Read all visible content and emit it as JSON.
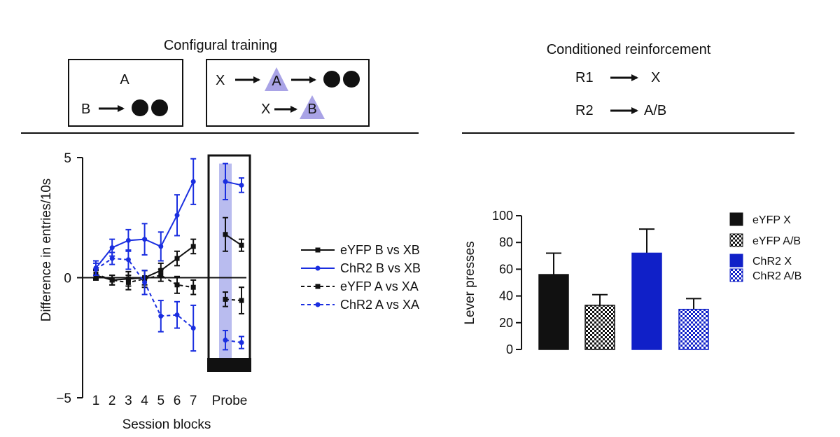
{
  "schematic": {
    "left_title": "Configural training",
    "box1": {
      "top": "A",
      "bottom": "B"
    },
    "box2": {
      "row1_x": "X",
      "row1_cue": "A",
      "row2_x": "X",
      "row2_cue": "B"
    },
    "right_title": "Conditioned reinforcement",
    "responses": [
      {
        "response": "R1",
        "outcome": "X"
      },
      {
        "response": "R2",
        "outcome": "A/B"
      }
    ]
  },
  "colors": {
    "black": "#111111",
    "blue": "#1a2ee0",
    "bar_blue": "#1020c8",
    "probe_highlight": "#b9bcef",
    "cue_triangle": "#a9a3e6"
  },
  "chart_data": [
    {
      "type": "line",
      "title": "",
      "xlabel": "Session blocks",
      "ylabel": "Difference in entries/10s",
      "ylim": [
        -5,
        5
      ],
      "y_ticks": [
        "5",
        "0",
        "−5"
      ],
      "categories": [
        "1",
        "2",
        "3",
        "4",
        "5",
        "6",
        "7"
      ],
      "probe_label": "Probe",
      "series": [
        {
          "name": "eYFP B vs XB",
          "color": "black",
          "dash": false,
          "values": [
            0.1,
            -0.1,
            -0.05,
            0.0,
            0.3,
            0.8,
            1.3
          ],
          "errors": [
            0.2,
            0.2,
            0.3,
            0.3,
            0.3,
            0.3,
            0.3
          ],
          "probe": [
            1.8,
            1.35
          ],
          "probe_errors": [
            0.7,
            0.25
          ]
        },
        {
          "name": "ChR2 B vs XB",
          "color": "blue",
          "dash": false,
          "values": [
            0.4,
            1.25,
            1.55,
            1.6,
            1.3,
            2.6,
            4.0
          ],
          "errors": [
            0.3,
            0.35,
            0.45,
            0.65,
            0.6,
            0.85,
            0.95
          ],
          "probe": [
            4.0,
            3.85
          ],
          "probe_errors": [
            0.75,
            0.3
          ]
        },
        {
          "name": "eYFP A vs XA",
          "color": "black",
          "dash": true,
          "values": [
            0.15,
            -0.1,
            -0.2,
            -0.05,
            0.1,
            -0.3,
            -0.4
          ],
          "errors": [
            0.2,
            0.2,
            0.3,
            0.35,
            0.25,
            0.35,
            0.3
          ],
          "probe": [
            -0.9,
            -0.95
          ],
          "probe_errors": [
            0.3,
            0.55
          ]
        },
        {
          "name": "ChR2 A vs XA",
          "color": "blue",
          "dash": true,
          "values": [
            0.35,
            0.8,
            0.75,
            -0.2,
            -1.6,
            -1.55,
            -2.1
          ],
          "errors": [
            0.25,
            0.25,
            0.4,
            0.5,
            0.65,
            0.55,
            0.95
          ],
          "probe": [
            -2.6,
            -2.7
          ],
          "probe_errors": [
            0.4,
            0.25
          ]
        }
      ]
    },
    {
      "type": "bar",
      "title": "",
      "xlabel": "",
      "ylabel": "Lever presses",
      "ylim": [
        0,
        100
      ],
      "y_ticks": [
        "0",
        "20",
        "40",
        "60",
        "80",
        "100"
      ],
      "categories": [
        "eYFP X",
        "eYFP A/B",
        "ChR2 X",
        "ChR2 A/B"
      ],
      "values": [
        56,
        33,
        72,
        30
      ],
      "errors": [
        16,
        8,
        18,
        8
      ],
      "fills": [
        "solid-black",
        "checker-black",
        "solid-blue",
        "checker-blue"
      ],
      "legend": [
        "eYFP X",
        "eYFP A/B",
        "ChR2 X",
        "ChR2 A/B"
      ]
    }
  ]
}
